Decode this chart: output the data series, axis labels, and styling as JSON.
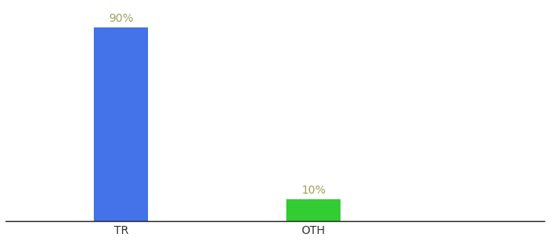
{
  "categories": [
    "TR",
    "OTH"
  ],
  "values": [
    90,
    10
  ],
  "bar_colors": [
    "#4472e8",
    "#33cc33"
  ],
  "label_texts": [
    "90%",
    "10%"
  ],
  "label_color": "#a0a060",
  "ylim": [
    0,
    100
  ],
  "background_color": "#ffffff",
  "bar_width": 0.28,
  "tick_fontsize": 10,
  "label_fontsize": 10,
  "x_positions": [
    1,
    2
  ],
  "xlim": [
    0.4,
    3.2
  ]
}
